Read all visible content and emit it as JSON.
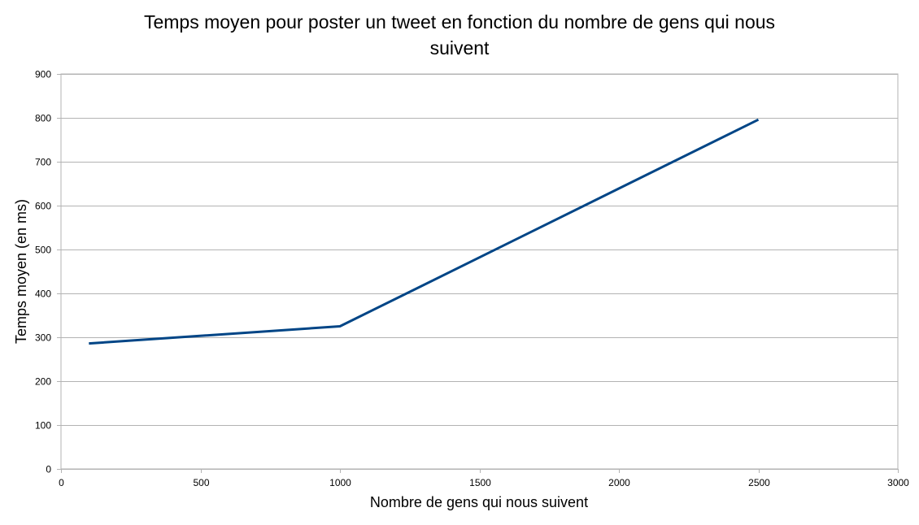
{
  "chart_data": {
    "type": "line",
    "title": "Temps moyen pour poster un tweet en fonction du nombre de gens qui nous suivent",
    "title_lines": [
      "Temps moyen pour poster un tweet en fonction du nombre de gens qui nous",
      "suivent"
    ],
    "xlabel": "Nombre de gens qui nous suivent",
    "ylabel": "Temps moyen (en ms)",
    "xlim": [
      0,
      3000
    ],
    "ylim": [
      0,
      900
    ],
    "x_ticks": [
      0,
      500,
      1000,
      1500,
      2000,
      2500,
      3000
    ],
    "y_ticks": [
      0,
      100,
      200,
      300,
      400,
      500,
      600,
      700,
      800,
      900
    ],
    "grid": "horizontal",
    "legend": "none",
    "series": [
      {
        "color": "#004586",
        "x": [
          100,
          1000,
          2500
        ],
        "y": [
          286,
          325,
          796
        ]
      }
    ]
  }
}
